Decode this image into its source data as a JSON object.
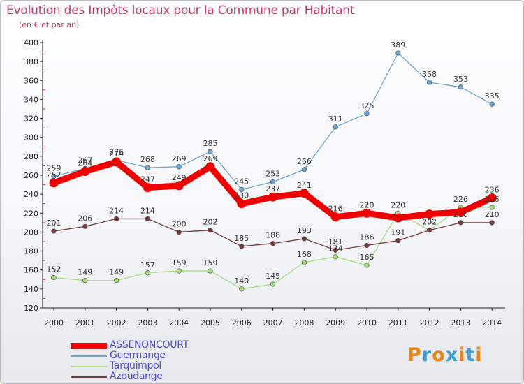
{
  "title": "Evolution des Impôts locaux pour la Commune par Habitant",
  "subtitle": "(en € et par an)",
  "logo": {
    "letters": [
      "P",
      "r",
      "o",
      "x",
      "i",
      "t",
      "i"
    ],
    "colors": [
      "#e8861c",
      "#3aa2d8",
      "#e8861c",
      "#3aa2d8",
      "#e8861c",
      "#3aa2d8",
      "#e8861c"
    ]
  },
  "chart_data": {
    "type": "line",
    "x": [
      "2000",
      "2001",
      "2002",
      "2003",
      "2004",
      "2005",
      "2006",
      "2007",
      "2008",
      "2009",
      "2010",
      "2011",
      "2012",
      "2013",
      "2014"
    ],
    "yticks": [
      120,
      140,
      160,
      180,
      200,
      220,
      240,
      260,
      280,
      300,
      320,
      340,
      360,
      380,
      400
    ],
    "ylim": [
      120,
      400
    ],
    "grid": false,
    "legend_position": "bottom-left",
    "series": [
      {
        "name": "ASSENONCOURT",
        "color": "#ee0000",
        "label_color": "#333333",
        "emphasis": true,
        "values": [
          252,
          264,
          274,
          247,
          249,
          269,
          230,
          237,
          241,
          216,
          220,
          215,
          219,
          221,
          236
        ],
        "labels": [
          "252",
          "264",
          "274",
          "247",
          "249",
          "269",
          "230",
          "237",
          "241",
          "216",
          "220",
          "",
          "",
          "",
          "236"
        ]
      },
      {
        "name": "Guermange",
        "color": "#6aa6d6",
        "label_color": "#333333",
        "values": [
          259,
          267,
          276,
          268,
          269,
          285,
          245,
          253,
          266,
          311,
          325,
          389,
          358,
          353,
          335
        ],
        "labels": [
          "259",
          "267",
          "276",
          "268",
          "269",
          "285",
          "245",
          "253",
          "266",
          "311",
          "325",
          "389",
          "358",
          "353",
          "335"
        ]
      },
      {
        "name": "Tarquimpol",
        "color": "#a6de7c",
        "label_color": "#333333",
        "values": [
          152,
          149,
          149,
          157,
          159,
          159,
          140,
          145,
          168,
          174,
          165,
          220,
          202,
          226,
          226
        ],
        "labels": [
          "152",
          "149",
          "149",
          "157",
          "159",
          "159",
          "140",
          "145",
          "168",
          "174",
          "165",
          "220",
          "202",
          "226",
          "226"
        ]
      },
      {
        "name": "Azoudange",
        "color": "#7a3a3a",
        "label_color": "#333333",
        "values": [
          201,
          206,
          214,
          214,
          200,
          202,
          185,
          188,
          193,
          181,
          186,
          191,
          202,
          210,
          210
        ],
        "labels": [
          "201",
          "206",
          "214",
          "214",
          "200",
          "202",
          "185",
          "188",
          "193",
          "181",
          "186",
          "191",
          "202",
          "210",
          "210"
        ]
      }
    ]
  }
}
